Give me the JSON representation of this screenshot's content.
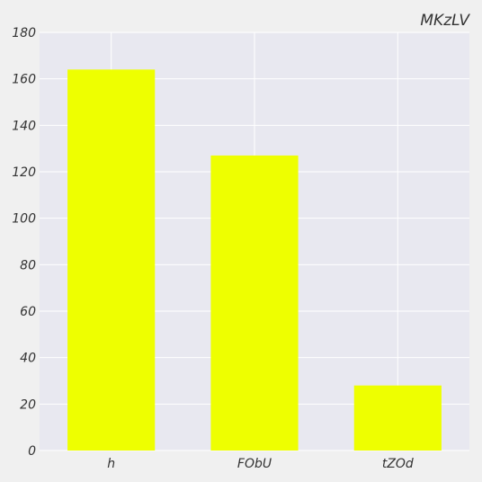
{
  "chart_data": {
    "type": "bar",
    "title": "MKzLV",
    "xlabel": "",
    "ylabel": "",
    "categories": [
      "h",
      "FObU",
      "tZOd"
    ],
    "values": [
      164,
      127,
      28
    ],
    "ylim": [
      0,
      180
    ],
    "yticks": [
      0,
      20,
      40,
      60,
      80,
      100,
      120,
      140,
      160,
      180
    ],
    "ytick_labels": [
      "0",
      "20",
      "40",
      "60",
      "80",
      "100",
      "120",
      "140",
      "160",
      "180"
    ],
    "grid": true,
    "legend": "none",
    "colors": {
      "bar": "#eeff00",
      "plot_background": "#e8e8f0",
      "figure_background": "#f0f0f0",
      "grid": "#ffffff",
      "text": "#333333"
    }
  }
}
